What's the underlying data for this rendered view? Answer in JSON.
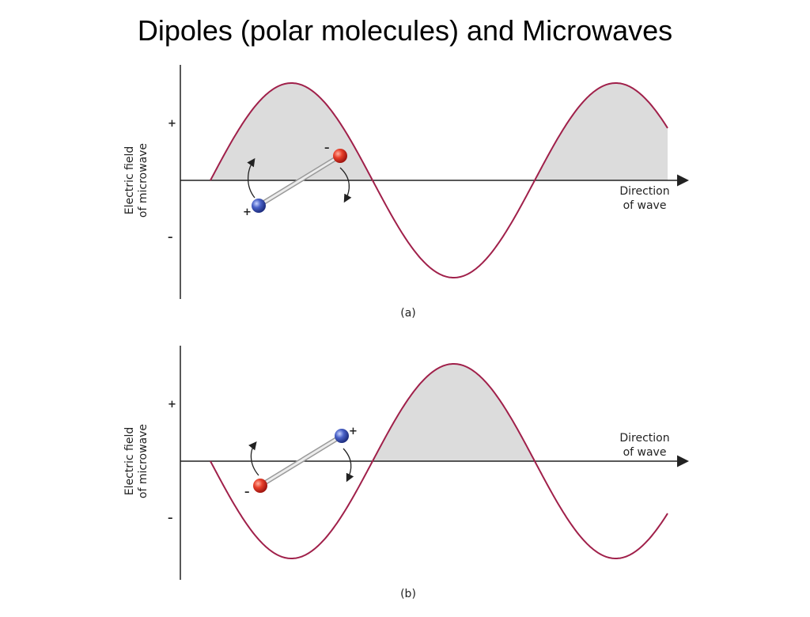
{
  "title": "Dipoles (polar molecules) and Microwaves",
  "colors": {
    "wave": "#a0204a",
    "fill": "#dcdcdc",
    "axis": "#222222",
    "positive_atom": "#3a52b8",
    "negative_atom": "#d8281c",
    "bond": "#c8c8c8"
  },
  "panels": [
    {
      "caption": "(a)",
      "ylabel_line1": "Electric field",
      "ylabel_line2": "of microwave",
      "plus_tick": "+",
      "minus_tick": "–",
      "direction_line1": "Direction",
      "direction_line2": "of wave",
      "wave_starts": "rising",
      "dipole_low_end_sign": "+",
      "dipole_high_end_sign": "–"
    },
    {
      "caption": "(b)",
      "ylabel_line1": "Electric field",
      "ylabel_line2": "of microwave",
      "plus_tick": "+",
      "minus_tick": "–",
      "direction_line1": "Direction",
      "direction_line2": "of wave",
      "wave_starts": "falling",
      "dipole_low_end_sign": "–",
      "dipole_high_end_sign": "+"
    }
  ]
}
